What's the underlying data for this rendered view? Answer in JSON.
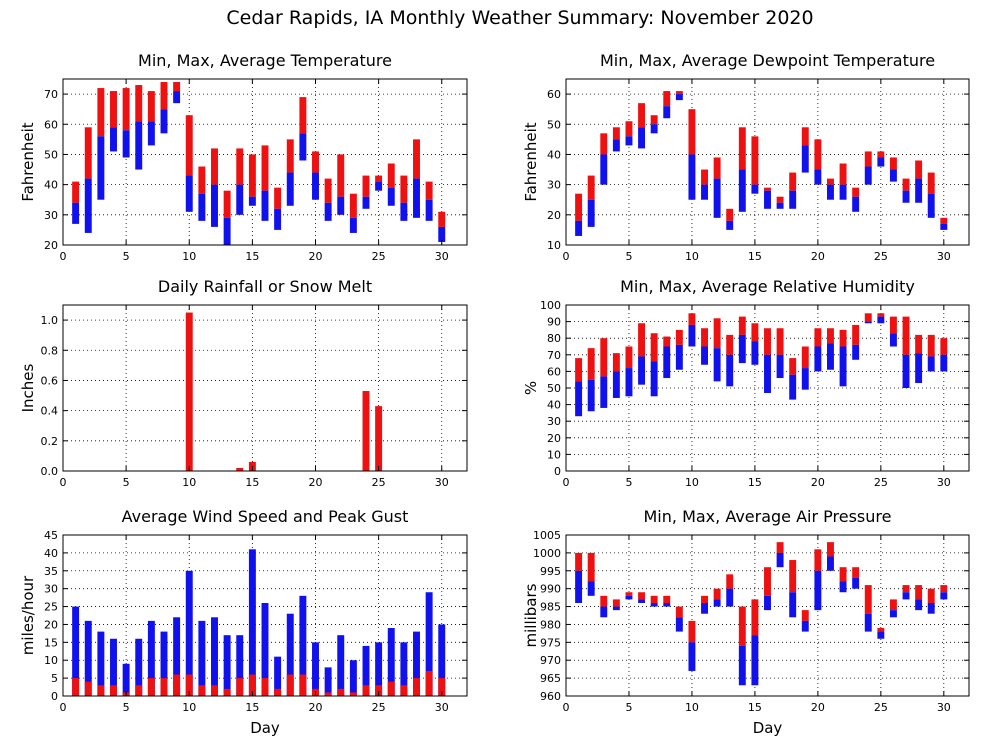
{
  "figure_title": "Cedar Rapids, IA Monthly Weather Summary: November 2020",
  "colors": {
    "max_bar": "#ee1111",
    "min_bar": "#1111ee",
    "grid": "#000000"
  },
  "chart_data": [
    {
      "id": "temp",
      "type": "bar",
      "title": "Min, Max, Average Temperature",
      "xlabel": "",
      "ylabel": "Fahrenheit",
      "xlim": [
        0,
        32
      ],
      "ylim": [
        20,
        75
      ],
      "xticks": [
        0,
        5,
        10,
        15,
        20,
        25,
        30
      ],
      "yticks": [
        20,
        30,
        40,
        50,
        60,
        70
      ],
      "grid": true,
      "series": [
        {
          "days": [
            1,
            2,
            3,
            4,
            5,
            6,
            7,
            8,
            9,
            10,
            11,
            12,
            13,
            14,
            15,
            16,
            17,
            18,
            19,
            20,
            21,
            22,
            23,
            24,
            25,
            26,
            27,
            28,
            29,
            30
          ],
          "max": [
            41,
            59,
            72,
            71,
            72,
            73,
            71,
            74,
            74,
            63,
            46,
            52,
            38,
            52,
            50,
            53,
            39,
            55,
            69,
            51,
            42,
            50,
            37,
            43,
            43,
            47,
            43,
            55,
            41,
            31
          ],
          "avg": [
            34,
            42,
            56,
            59,
            58,
            61,
            61,
            65,
            71,
            43,
            37,
            40,
            29,
            40,
            36,
            38,
            32,
            44,
            57,
            44,
            34,
            36,
            29,
            36,
            41,
            39,
            34,
            42,
            35,
            26
          ],
          "min": [
            27,
            24,
            35,
            51,
            49,
            45,
            53,
            57,
            67,
            31,
            28,
            26,
            20,
            30,
            33,
            28,
            25,
            33,
            48,
            35,
            28,
            30,
            24,
            32,
            38,
            33,
            28,
            29,
            28,
            21
          ]
        }
      ]
    },
    {
      "id": "dewpoint",
      "type": "bar",
      "title": "Min, Max, Average Dewpoint Temperature",
      "xlabel": "",
      "ylabel": "Fahrenheit",
      "xlim": [
        0,
        32
      ],
      "ylim": [
        10,
        65
      ],
      "xticks": [
        0,
        5,
        10,
        15,
        20,
        25,
        30
      ],
      "yticks": [
        10,
        20,
        30,
        40,
        50,
        60
      ],
      "grid": true,
      "series": [
        {
          "days": [
            1,
            2,
            3,
            4,
            5,
            6,
            7,
            8,
            9,
            10,
            11,
            12,
            13,
            14,
            15,
            16,
            17,
            18,
            19,
            20,
            21,
            22,
            23,
            24,
            25,
            26,
            27,
            28,
            29,
            30
          ],
          "max": [
            27,
            33,
            47,
            49,
            51,
            57,
            53,
            61,
            61,
            55,
            35,
            39,
            22,
            49,
            46,
            29,
            26,
            34,
            49,
            45,
            32,
            37,
            29,
            41,
            41,
            39,
            32,
            38,
            34,
            19
          ],
          "avg": [
            18,
            25,
            40,
            45,
            46,
            49,
            50,
            56,
            60,
            40,
            30,
            32,
            18,
            35,
            30,
            28,
            24,
            28,
            43,
            35,
            30,
            30,
            26,
            36,
            39,
            35,
            28,
            32,
            27,
            17
          ],
          "min": [
            13,
            16,
            30,
            41,
            43,
            42,
            47,
            52,
            58,
            25,
            25,
            19,
            15,
            21,
            27,
            22,
            22,
            22,
            34,
            30,
            25,
            25,
            21,
            30,
            36,
            31,
            24,
            24,
            19,
            15
          ]
        }
      ]
    },
    {
      "id": "rain",
      "type": "bar",
      "title": "Daily Rainfall or Snow Melt",
      "xlabel": "",
      "ylabel": "Inches",
      "xlim": [
        0,
        32
      ],
      "ylim": [
        0,
        1.1
      ],
      "xticks": [
        0,
        5,
        10,
        15,
        20,
        25,
        30
      ],
      "yticks": [
        0.0,
        0.2,
        0.4,
        0.6,
        0.8,
        1.0
      ],
      "ytick_labels": [
        "0.0",
        "0.2",
        "0.4",
        "0.6",
        "0.8",
        "1.0"
      ],
      "grid": true,
      "series": [
        {
          "days": [
            10,
            14,
            15,
            24,
            25
          ],
          "values": [
            1.05,
            0.02,
            0.06,
            0.53,
            0.43
          ]
        }
      ]
    },
    {
      "id": "humidity",
      "type": "bar",
      "title": "Min, Max, Average Relative Humidity",
      "xlabel": "",
      "ylabel": "%",
      "xlim": [
        0,
        32
      ],
      "ylim": [
        0,
        100
      ],
      "xticks": [
        0,
        5,
        10,
        15,
        20,
        25,
        30
      ],
      "yticks": [
        0,
        10,
        20,
        30,
        40,
        50,
        60,
        70,
        80,
        90,
        100
      ],
      "grid": true,
      "series": [
        {
          "days": [
            1,
            2,
            3,
            4,
            5,
            6,
            7,
            8,
            9,
            10,
            11,
            12,
            13,
            14,
            15,
            16,
            17,
            18,
            19,
            20,
            21,
            22,
            23,
            24,
            25,
            26,
            27,
            28,
            29,
            30
          ],
          "max": [
            68,
            74,
            80,
            71,
            75,
            89,
            83,
            81,
            85,
            95,
            86,
            92,
            82,
            93,
            89,
            86,
            86,
            68,
            75,
            86,
            86,
            85,
            88,
            95,
            95,
            93,
            93,
            82,
            82,
            80
          ],
          "avg": [
            54,
            55,
            57,
            60,
            62,
            69,
            66,
            75,
            76,
            88,
            75,
            74,
            70,
            82,
            78,
            70,
            70,
            58,
            62,
            75,
            77,
            75,
            76,
            90,
            93,
            83,
            70,
            71,
            69,
            70
          ],
          "min": [
            33,
            36,
            38,
            44,
            45,
            52,
            45,
            56,
            61,
            75,
            64,
            54,
            51,
            65,
            64,
            47,
            56,
            43,
            49,
            60,
            61,
            51,
            67,
            89,
            89,
            75,
            50,
            53,
            60,
            60
          ]
        }
      ]
    },
    {
      "id": "wind",
      "type": "bar",
      "title": "Average Wind Speed and Peak Gust",
      "xlabel": "Day",
      "ylabel": "miles/hour",
      "xlim": [
        0,
        32
      ],
      "ylim": [
        0,
        45
      ],
      "xticks": [
        0,
        5,
        10,
        15,
        20,
        25,
        30
      ],
      "yticks": [
        0,
        5,
        10,
        15,
        20,
        25,
        30,
        35,
        40,
        45
      ],
      "grid": true,
      "series": [
        {
          "days": [
            1,
            2,
            3,
            4,
            5,
            6,
            7,
            8,
            9,
            10,
            11,
            12,
            13,
            14,
            15,
            16,
            17,
            18,
            19,
            20,
            21,
            22,
            23,
            24,
            25,
            26,
            27,
            28,
            29,
            30
          ],
          "peak_gust": [
            25,
            21,
            18,
            16,
            9,
            16,
            21,
            18,
            22,
            35,
            21,
            22,
            17,
            17,
            41,
            26,
            11,
            23,
            28,
            15,
            8,
            17,
            10,
            14,
            15,
            19,
            15,
            18,
            29,
            20
          ],
          "avg_speed": [
            5,
            4,
            3,
            3,
            1,
            3,
            5,
            5,
            6,
            6,
            3,
            3,
            2,
            5,
            6,
            5,
            2,
            6,
            6,
            2,
            1,
            2,
            1,
            3,
            3,
            4,
            3,
            5,
            7,
            5
          ]
        }
      ]
    },
    {
      "id": "pressure",
      "type": "bar",
      "title": "Min, Max, Average Air Pressure",
      "xlabel": "Day",
      "ylabel": "millibars",
      "xlim": [
        0,
        32
      ],
      "ylim": [
        960,
        1005
      ],
      "xticks": [
        0,
        5,
        10,
        15,
        20,
        25,
        30
      ],
      "yticks": [
        960,
        965,
        970,
        975,
        980,
        985,
        990,
        995,
        1000,
        1005
      ],
      "grid": true,
      "series": [
        {
          "days": [
            1,
            2,
            3,
            4,
            5,
            6,
            7,
            8,
            9,
            10,
            11,
            12,
            13,
            14,
            15,
            16,
            17,
            18,
            19,
            20,
            21,
            22,
            23,
            24,
            25,
            26,
            27,
            28,
            29,
            30
          ],
          "max": [
            1000,
            1000,
            988,
            987,
            989,
            989,
            988,
            988,
            985,
            981,
            988,
            990,
            994,
            985,
            987,
            996,
            1003,
            998,
            984,
            1001,
            1003,
            996,
            996,
            991,
            979,
            987,
            991,
            991,
            990,
            991
          ],
          "avg": [
            995,
            992,
            985,
            985,
            988,
            987,
            986,
            986,
            982,
            975,
            986,
            987,
            990,
            974,
            977,
            988,
            1000,
            989,
            981,
            995,
            999,
            992,
            993,
            983,
            978,
            984,
            989,
            987,
            986,
            989
          ],
          "min": [
            986,
            988,
            982,
            984,
            987,
            986,
            985,
            985,
            978,
            967,
            983,
            985,
            985,
            963,
            963,
            984,
            996,
            982,
            978,
            984,
            995,
            989,
            990,
            978,
            976,
            982,
            987,
            984,
            983,
            987
          ]
        }
      ]
    }
  ]
}
